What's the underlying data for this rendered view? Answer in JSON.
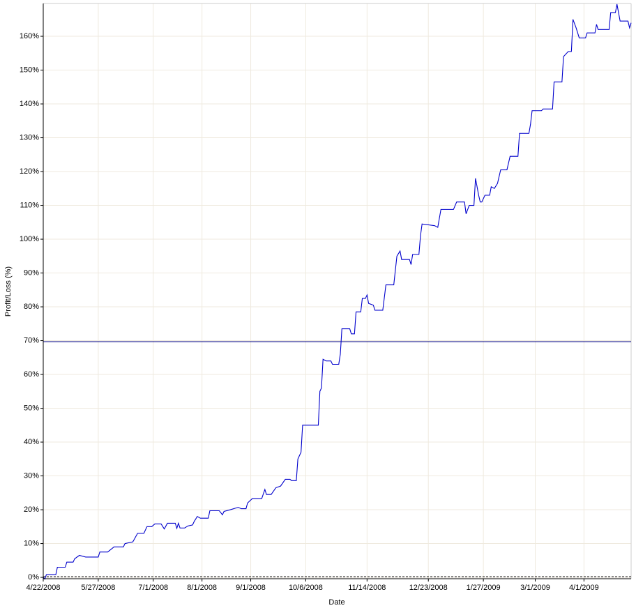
{
  "chart_data": {
    "type": "line",
    "xlabel": "Date",
    "ylabel": "Profit/Loss (%)",
    "x": [
      "4/22/2008",
      "4/23/2008",
      "4/24/2008",
      "4/30/2008",
      "5/1/2008",
      "5/6/2008",
      "5/7/2008",
      "5/11/2008",
      "5/12/2008",
      "5/15/2008",
      "5/19/2008",
      "5/27/2008",
      "5/28/2008",
      "6/2/2008",
      "6/6/2008",
      "6/12/2008",
      "6/13/2008",
      "6/18/2008",
      "6/21/2008",
      "6/25/2008",
      "6/27/2008",
      "6/30/2008",
      "7/2/2008",
      "7/6/2008",
      "7/8/2008",
      "7/10/2008",
      "7/15/2008",
      "7/16/2008",
      "7/17/2008",
      "7/18/2008",
      "7/21/2008",
      "7/23/2008",
      "7/26/2008",
      "7/27/2008",
      "7/29/2008",
      "7/31/2008",
      "8/5/2008",
      "8/6/2008",
      "8/12/2008",
      "8/14/2008",
      "8/15/2008",
      "8/19/2008",
      "8/24/2008",
      "8/26/2008",
      "8/29/2008",
      "8/30/2008",
      "9/2/2008",
      "9/8/2008",
      "9/10/2008",
      "9/11/2008",
      "9/14/2008",
      "9/17/2008",
      "9/20/2008",
      "9/23/2008",
      "9/26/2008",
      "9/27/2008",
      "9/30/2008",
      "10/1/2008",
      "10/3/2008",
      "10/4/2008",
      "10/14/2008",
      "10/15/2008",
      "10/16/2008",
      "10/17/2008",
      "10/19/2008",
      "10/22/2008",
      "10/23/2008",
      "10/27/2008",
      "10/28/2008",
      "10/29/2008",
      "11/3/2008",
      "11/4/2008",
      "11/6/2008",
      "11/7/2008",
      "11/10/2008",
      "11/11/2008",
      "11/13/2008",
      "11/14/2008",
      "11/15/2008",
      "11/18/2008",
      "11/19/2008",
      "11/24/2008",
      "11/26/2008",
      "12/1/2008",
      "12/3/2008",
      "12/5/2008",
      "12/6/2008",
      "12/11/2008",
      "12/12/2008",
      "12/13/2008",
      "12/17/2008",
      "12/18/2008",
      "12/19/2008",
      "12/27/2008",
      "12/29/2008",
      "12/31/2008",
      "1/8/2009",
      "1/10/2009",
      "1/15/2009",
      "1/16/2009",
      "1/18/2009",
      "1/21/2009",
      "1/22/2009",
      "1/24/2009",
      "1/25/2009",
      "1/26/2009",
      "1/28/2009",
      "1/31/2009",
      "2/1/2009",
      "2/3/2009",
      "2/5/2009",
      "2/7/2009",
      "2/11/2009",
      "2/13/2009",
      "2/18/2009",
      "2/19/2009",
      "2/25/2009",
      "2/26/2009",
      "2/27/2009",
      "3/5/2009",
      "3/6/2009",
      "3/12/2009",
      "3/13/2009",
      "3/18/2009",
      "3/19/2009",
      "3/22/2009",
      "3/24/2009",
      "3/25/2009",
      "3/27/2009",
      "3/29/2009",
      "4/2/2009",
      "4/3/2009",
      "4/8/2009",
      "4/9/2009",
      "4/10/2009",
      "4/17/2009",
      "4/18/2009",
      "4/21/2009",
      "4/22/2009",
      "4/24/2009",
      "4/29/2009",
      "4/30/2009",
      "5/1/2009"
    ],
    "values": [
      0,
      -0.5,
      0.8,
      0.8,
      3,
      3,
      4.5,
      4.5,
      5.5,
      6.5,
      6,
      6,
      7.5,
      7.5,
      9,
      9,
      10,
      10.5,
      13,
      13,
      15,
      15,
      15.8,
      15.8,
      14.3,
      16,
      16,
      14.5,
      16,
      14.6,
      14.6,
      15.2,
      15.5,
      16.5,
      18,
      17.5,
      17.5,
      19.7,
      19.7,
      18.5,
      19.5,
      20,
      20.7,
      20.3,
      20.3,
      22,
      23.3,
      23.3,
      26,
      24.5,
      24.5,
      26.5,
      27,
      29,
      29,
      28.6,
      28.6,
      35,
      37,
      45,
      45,
      55,
      56,
      64.5,
      64,
      64,
      63,
      63,
      66,
      73.5,
      73.5,
      72,
      72,
      78.5,
      78.5,
      82.5,
      82.5,
      83.5,
      81,
      80.5,
      79,
      79,
      86.5,
      86.5,
      95,
      96.5,
      94,
      94,
      92.5,
      95.5,
      95.5,
      101,
      104.5,
      104,
      103.5,
      108.8,
      108.8,
      111,
      111,
      107.5,
      110,
      110,
      118,
      113,
      111,
      111,
      113,
      113,
      115.5,
      115,
      116.5,
      120.5,
      120.5,
      124.5,
      124.5,
      131.3,
      131.3,
      134,
      138,
      138,
      138.5,
      138.5,
      146.5,
      146.5,
      154,
      155.5,
      155.5,
      165,
      162.5,
      159.5,
      159.5,
      161,
      161,
      163.5,
      162,
      162,
      167,
      167,
      169.5,
      164.5,
      164.5,
      162.5,
      164
    ],
    "color": "#0000cc",
    "xlim": [
      "4/22/2008",
      "5/1/2009"
    ],
    "xticks": [
      "4/22/2008",
      "5/27/2008",
      "7/1/2008",
      "8/1/2008",
      "9/1/2008",
      "10/6/2008",
      "11/14/2008",
      "12/23/2008",
      "1/27/2009",
      "3/1/2009",
      "4/1/2009"
    ],
    "ylim": [
      -0.4,
      169.7
    ],
    "yticks": [
      {
        "value": 0,
        "label": "0%"
      },
      {
        "value": 10,
        "label": "10%"
      },
      {
        "value": 20,
        "label": "20%"
      },
      {
        "value": 30,
        "label": "30%"
      },
      {
        "value": 40,
        "label": "40%"
      },
      {
        "value": 50,
        "label": "50%"
      },
      {
        "value": 60,
        "label": "60%"
      },
      {
        "value": 70,
        "label": "70%"
      },
      {
        "value": 80,
        "label": "80%"
      },
      {
        "value": 90,
        "label": "90%"
      },
      {
        "value": 100,
        "label": "100%"
      },
      {
        "value": 110,
        "label": "110%"
      },
      {
        "value": 120,
        "label": "120%"
      },
      {
        "value": 130,
        "label": "130%"
      },
      {
        "value": 140,
        "label": "140%"
      },
      {
        "value": 150,
        "label": "150%"
      },
      {
        "value": 160,
        "label": "160%"
      }
    ],
    "hlines": [
      {
        "value": 69.7,
        "color": "#000080",
        "dash": false
      },
      {
        "value": 0.2,
        "color": "#000000",
        "dash": true
      }
    ],
    "grid": true
  }
}
